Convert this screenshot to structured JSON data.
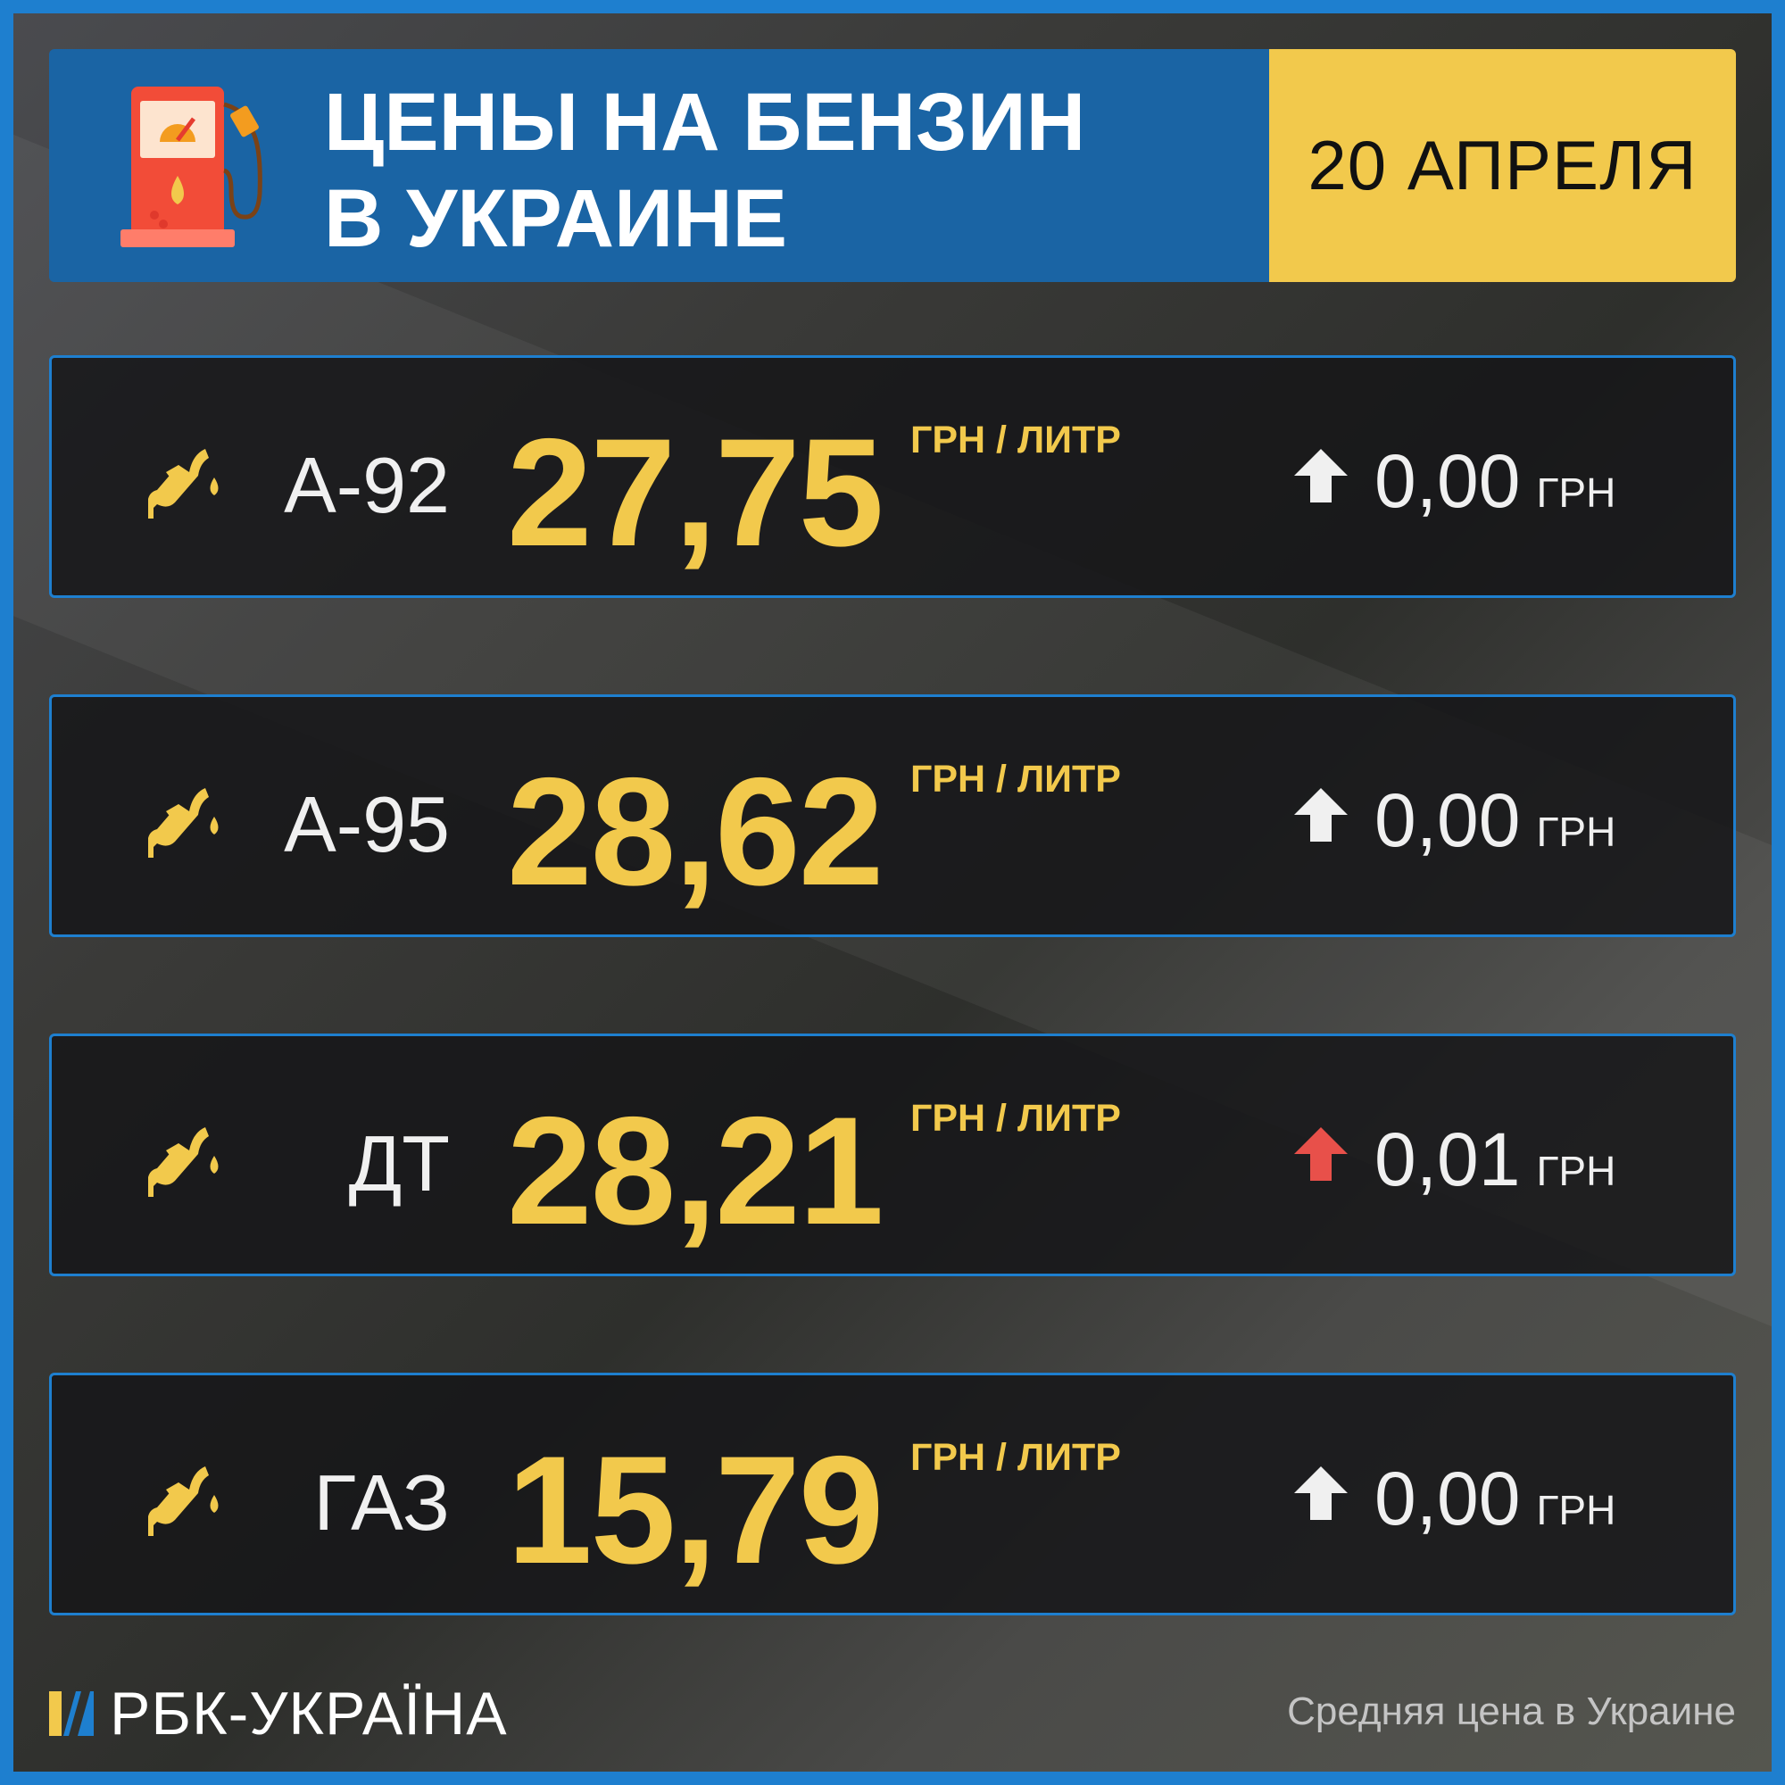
{
  "header": {
    "title_line1": "ЦЕНЫ НА БЕНЗИН",
    "title_line2": "В УКРАИНЕ",
    "date": "20 АПРЕЛЯ",
    "icon": "fuel-pump-icon"
  },
  "colors": {
    "brand_blue": "#1a64a4",
    "border_blue": "#1e7fcf",
    "accent_yellow": "#f2c94c",
    "up_red": "#e8504a",
    "neutral_arrow": "#f0f0f0"
  },
  "rows": [
    {
      "fuel": "А-92",
      "price": "27,75",
      "unit": "ГРН / ЛИТР",
      "change": "0,00",
      "change_unit": "ГРН",
      "trend": "neutral"
    },
    {
      "fuel": "А-95",
      "price": "28,62",
      "unit": "ГРН / ЛИТР",
      "change": "0,00",
      "change_unit": "ГРН",
      "trend": "neutral"
    },
    {
      "fuel": "ДТ",
      "price": "28,21",
      "unit": "ГРН / ЛИТР",
      "change": "0,01",
      "change_unit": "ГРН",
      "trend": "up"
    },
    {
      "fuel": "ГАЗ",
      "price": "15,79",
      "unit": "ГРН / ЛИТР",
      "change": "0,00",
      "change_unit": "ГРН",
      "trend": "neutral"
    }
  ],
  "footer": {
    "logo": "РБК-УКРАЇНА",
    "note": "Средняя цена в Украине"
  }
}
